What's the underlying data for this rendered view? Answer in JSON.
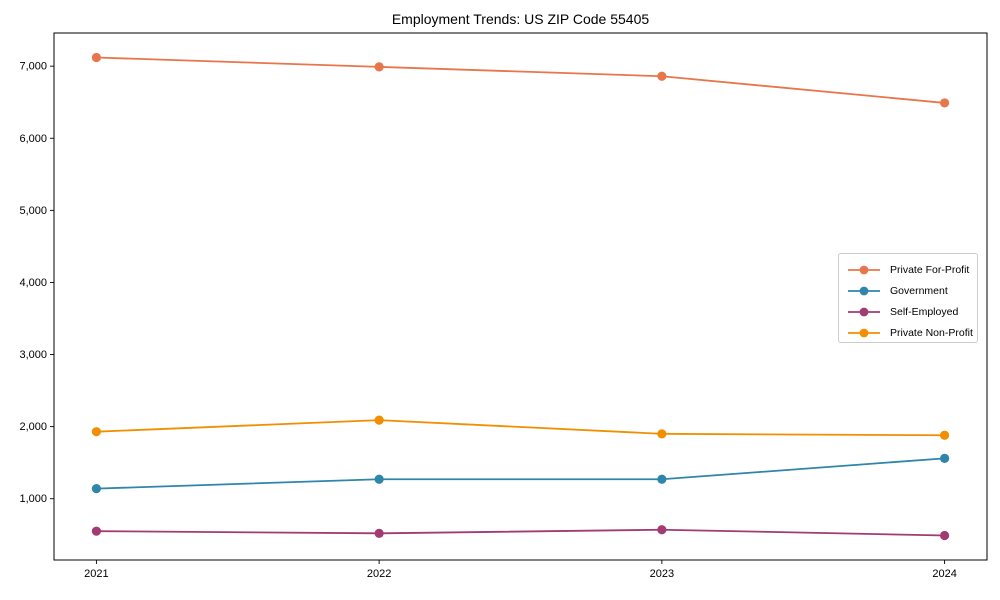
{
  "chart_data": {
    "type": "line",
    "title": "Employment Trends: US ZIP Code 55405",
    "xlabel": "",
    "ylabel": "",
    "grid": false,
    "marker": "circle",
    "legend_position": "center right",
    "categories": [
      "2021",
      "2022",
      "2023",
      "2024"
    ],
    "series": [
      {
        "name": "Private For-Profit",
        "color": "#E8764B",
        "values": [
          7120,
          6990,
          6860,
          6490
        ]
      },
      {
        "name": "Government",
        "color": "#2E86AB",
        "values": [
          1140,
          1270,
          1270,
          1560
        ]
      },
      {
        "name": "Self-Employed",
        "color": "#A23B72",
        "values": [
          550,
          520,
          570,
          490
        ]
      },
      {
        "name": "Private Non-Profit",
        "color": "#F18F01",
        "values": [
          1930,
          2090,
          1900,
          1880
        ]
      }
    ],
    "yticks": [
      {
        "value": 1000,
        "label": "1,000"
      },
      {
        "value": 2000,
        "label": "2,000"
      },
      {
        "value": 3000,
        "label": "3,000"
      },
      {
        "value": 4000,
        "label": "4,000"
      },
      {
        "value": 5000,
        "label": "5,000"
      },
      {
        "value": 6000,
        "label": "6,000"
      },
      {
        "value": 7000,
        "label": "7,000"
      }
    ],
    "ylim": [
      150,
      7460
    ],
    "axis_color": "#000000"
  }
}
